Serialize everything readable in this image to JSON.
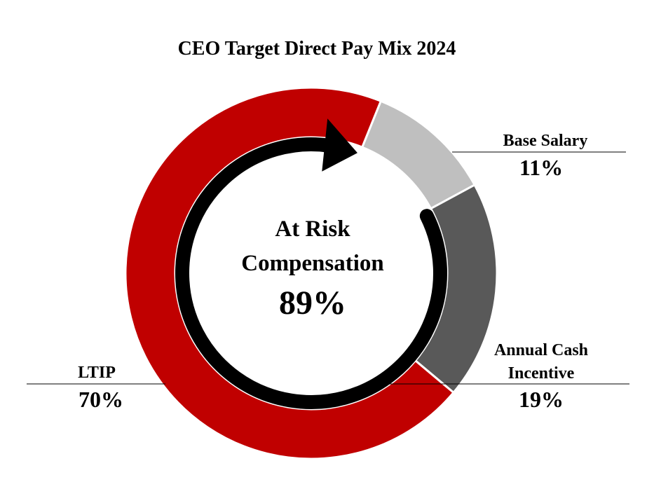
{
  "chart_data": {
    "type": "pie",
    "title": "CEO Target Direct Pay Mix 2024",
    "slices": [
      {
        "label": "Base Salary",
        "value": 11,
        "value_label": "11%",
        "color": "#bfbfbf"
      },
      {
        "label": "Annual Cash Incentive",
        "label_lines": [
          "Annual Cash",
          "Incentive"
        ],
        "value": 19,
        "value_label": "19%",
        "color": "#595959"
      },
      {
        "label": "LTIP",
        "value": 70,
        "value_label": "70%",
        "color": "#c00000"
      }
    ],
    "center": {
      "line1": "At Risk",
      "line2": "Compensation",
      "value": "89%"
    }
  }
}
